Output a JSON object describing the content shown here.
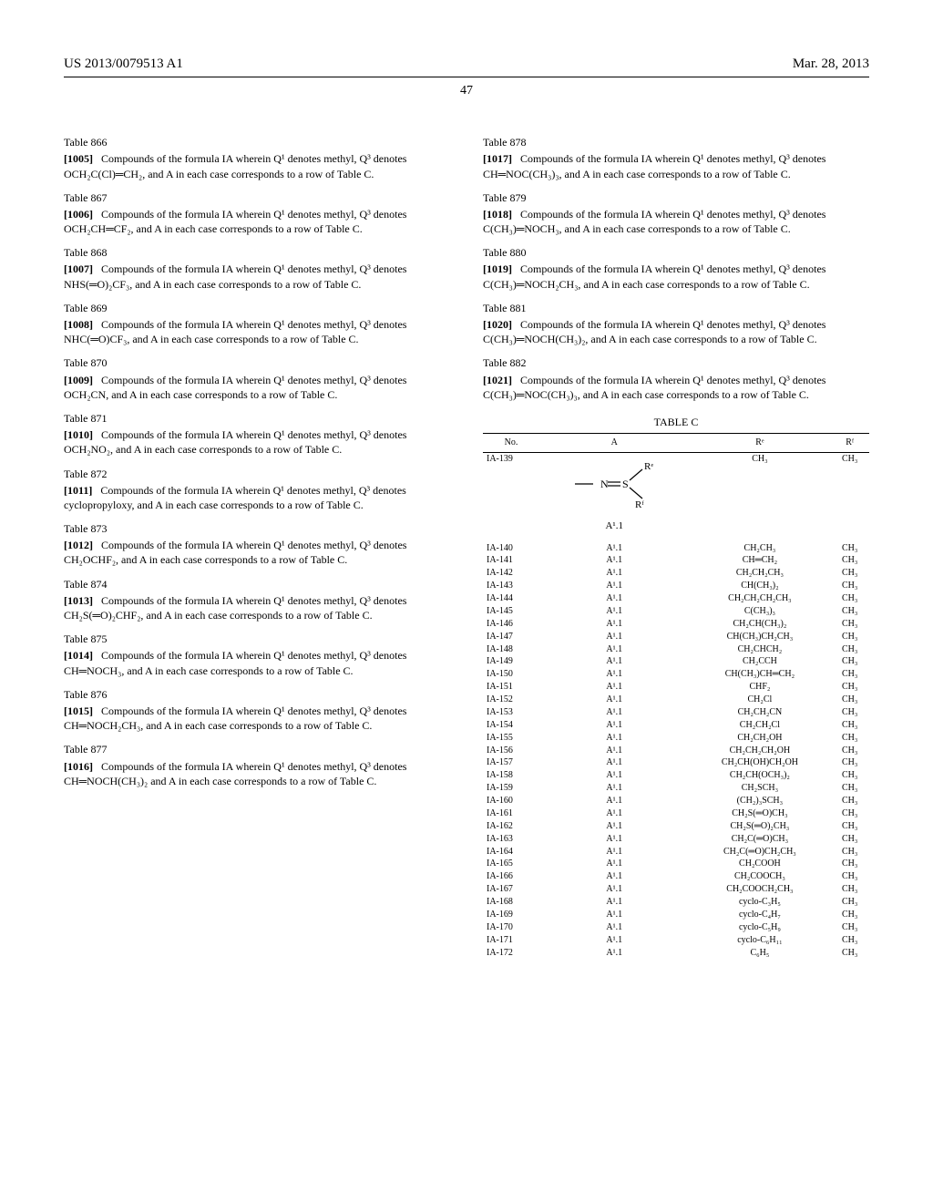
{
  "header": {
    "patent_number": "US 2013/0079513 A1",
    "date": "Mar. 28, 2013",
    "page_number": "47"
  },
  "left_entries": [
    {
      "tbl": "Table 866",
      "num": "[1005]",
      "q3": "OCH₂C(Cl)═CH₂",
      "tail": ", and A in each case corresponds to a row of Table C."
    },
    {
      "tbl": "Table 867",
      "num": "[1006]",
      "q3": "OCH₂CH═CF₂",
      "tail": ", and A in each case corresponds to a row of Table C."
    },
    {
      "tbl": "Table 868",
      "num": "[1007]",
      "q3": "NHS(═O)₂CF₃",
      "tail": ", and A in each case corresponds to a row of Table C."
    },
    {
      "tbl": "Table 869",
      "num": "[1008]",
      "q3": "NHC(═O)CF₃",
      "tail": ", and A in each case corresponds to a row of Table C."
    },
    {
      "tbl": "Table 870",
      "num": "[1009]",
      "q3": "OCH₂CN",
      "tail": ", and A in each case corresponds to a row of Table C."
    },
    {
      "tbl": "Table 871",
      "num": "[1010]",
      "q3": "OCH₂NO₂",
      "tail": ", and A in each case corresponds to a row of Table C."
    },
    {
      "tbl": "Table 872",
      "num": "[1011]",
      "q3": "cyclopropyloxy",
      "tail": ", and A in each case corresponds to a row of Table C."
    },
    {
      "tbl": "Table 873",
      "num": "[1012]",
      "q3": "CH₂OCHF₂",
      "tail": ", and A in each case corresponds to a row of Table C."
    },
    {
      "tbl": "Table 874",
      "num": "[1013]",
      "q3": "CH₂S(═O)₂CHF₂",
      "tail": ", and A in each case corresponds to a row of Table C."
    },
    {
      "tbl": "Table 875",
      "num": "[1014]",
      "q3": "CH═NOCH₃",
      "tail": ", and A in each case corresponds to a row of Table C."
    },
    {
      "tbl": "Table 876",
      "num": "[1015]",
      "q3": "CH═NOCH₂CH₃",
      "tail": ", and A in each case corresponds to a row of Table C."
    },
    {
      "tbl": "Table 877",
      "num": "[1016]",
      "q3": "CH═NOCH(CH₃)₂",
      "tail": " and A in each case corresponds to a row of Table C."
    }
  ],
  "right_entries": [
    {
      "tbl": "Table 878",
      "num": "[1017]",
      "q3": "CH═NOC(CH₃)₃",
      "tail": ", and A in each case corresponds to a row of Table C."
    },
    {
      "tbl": "Table 879",
      "num": "[1018]",
      "q3": "C(CH₃)═NOCH₃",
      "tail": ", and A in each case corresponds to a row of Table C."
    },
    {
      "tbl": "Table 880",
      "num": "[1019]",
      "q3": "C(CH₃)═NOCH₂CH₃",
      "tail": ", and A in each case corresponds to a row of Table C."
    },
    {
      "tbl": "Table 881",
      "num": "[1020]",
      "q3": "C(CH₃)═NOCH(CH₃)₂",
      "tail": ", and A in each case corresponds to a row of Table C."
    },
    {
      "tbl": "Table 882",
      "num": "[1021]",
      "q3": "C(CH₃)═NOC(CH₃)₃",
      "tail": ", and A in each case corresponds to a row of Table C."
    }
  ],
  "tableC": {
    "title": "TABLE C",
    "columns": [
      "No.",
      "A",
      "Rᵉ",
      "Rᶠ"
    ],
    "first_row": {
      "no": "IA-139",
      "re": "CH₃",
      "rf": "CH₃",
      "a_label": "A¹.1"
    },
    "rows": [
      [
        "IA-140",
        "A¹.1",
        "CH₂CH₃",
        "CH₃"
      ],
      [
        "IA-141",
        "A¹.1",
        "CH═CH₂",
        "CH₃"
      ],
      [
        "IA-142",
        "A¹.1",
        "CH₂CH₂CH₃",
        "CH₃"
      ],
      [
        "IA-143",
        "A¹.1",
        "CH(CH₃)₂",
        "CH₃"
      ],
      [
        "IA-144",
        "A¹.1",
        "CH₂CH₂CH₂CH₃",
        "CH₃"
      ],
      [
        "IA-145",
        "A¹.1",
        "C(CH₃)₃",
        "CH₃"
      ],
      [
        "IA-146",
        "A¹.1",
        "CH₂CH(CH₃)₂",
        "CH₃"
      ],
      [
        "IA-147",
        "A¹.1",
        "CH(CH₃)CH₂CH₃",
        "CH₃"
      ],
      [
        "IA-148",
        "A¹.1",
        "CH₂CHCH₂",
        "CH₃"
      ],
      [
        "IA-149",
        "A¹.1",
        "CH₂CCH",
        "CH₃"
      ],
      [
        "IA-150",
        "A¹.1",
        "CH(CH₃)CH═CH₂",
        "CH₃"
      ],
      [
        "IA-151",
        "A¹.1",
        "CHF₂",
        "CH₃"
      ],
      [
        "IA-152",
        "A¹.1",
        "CH₂Cl",
        "CH₃"
      ],
      [
        "IA-153",
        "A¹.1",
        "CH₂CH₂CN",
        "CH₃"
      ],
      [
        "IA-154",
        "A¹.1",
        "CH₂CH₂Cl",
        "CH₃"
      ],
      [
        "IA-155",
        "A¹.1",
        "CH₂CH₂OH",
        "CH₃"
      ],
      [
        "IA-156",
        "A¹.1",
        "CH₂CH₂CH₂OH",
        "CH₃"
      ],
      [
        "IA-157",
        "A¹.1",
        "CH₂CH(OH)CH₂OH",
        "CH₃"
      ],
      [
        "IA-158",
        "A¹.1",
        "CH₂CH(OCH₃)₂",
        "CH₃"
      ],
      [
        "IA-159",
        "A¹.1",
        "CH₂SCH₃",
        "CH₃"
      ],
      [
        "IA-160",
        "A¹.1",
        "(CH₂)₃SCH₃",
        "CH₃"
      ],
      [
        "IA-161",
        "A¹.1",
        "CH₂S(═O)CH₃",
        "CH₃"
      ],
      [
        "IA-162",
        "A¹.1",
        "CH₂S(═O)₂CH₃",
        "CH₃"
      ],
      [
        "IA-163",
        "A¹.1",
        "CH₂C(═O)CH₃",
        "CH₃"
      ],
      [
        "IA-164",
        "A¹.1",
        "CH₂C(═O)CH₂CH₃",
        "CH₃"
      ],
      [
        "IA-165",
        "A¹.1",
        "CH₂COOH",
        "CH₃"
      ],
      [
        "IA-166",
        "A¹.1",
        "CH₂COOCH₃",
        "CH₃"
      ],
      [
        "IA-167",
        "A¹.1",
        "CH₂COOCH₂CH₃",
        "CH₃"
      ],
      [
        "IA-168",
        "A¹.1",
        "cyclo-C₃H₅",
        "CH₃"
      ],
      [
        "IA-169",
        "A¹.1",
        "cyclo-C₄H₇",
        "CH₃"
      ],
      [
        "IA-170",
        "A¹.1",
        "cyclo-C₅H₉",
        "CH₃"
      ],
      [
        "IA-171",
        "A¹.1",
        "cyclo-C₆H₁₁",
        "CH₃"
      ],
      [
        "IA-172",
        "A¹.1",
        "C₆H₅",
        "CH₃"
      ]
    ]
  },
  "common": {
    "lead": "Compounds of the formula IA wherein Q¹ denotes methyl, Q³ denotes "
  }
}
